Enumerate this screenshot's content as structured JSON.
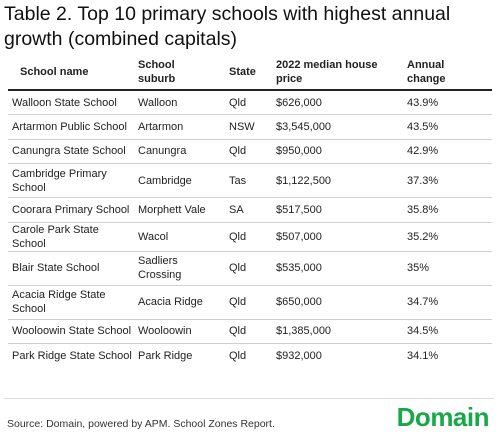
{
  "title": "Table 2. Top 10 primary schools with highest annual growth (combined capitals)",
  "table": {
    "headers": [
      "School name",
      "School suburb",
      "State",
      "2022 median house price",
      "Annual change"
    ],
    "rows": [
      {
        "school": "Walloon State School",
        "suburb": "Walloon",
        "state": "Qld",
        "price": "$626,000",
        "change": "43.9%"
      },
      {
        "school": "Artarmon Public School",
        "suburb": "Artarmon",
        "state": "NSW",
        "price": "$3,545,000",
        "change": "43.5%"
      },
      {
        "school": "Canungra State School",
        "suburb": "Canungra",
        "state": "Qld",
        "price": "$950,000",
        "change": "42.9%"
      },
      {
        "school": "Cambridge Primary School",
        "suburb": "Cambridge",
        "state": "Tas",
        "price": "$1,122,500",
        "change": "37.3%"
      },
      {
        "school": "Coorara Primary School",
        "suburb": "Morphett Vale",
        "state": "SA",
        "price": "$517,500",
        "change": "35.8%"
      },
      {
        "school": "Carole Park State School",
        "suburb": "Wacol",
        "state": "Qld",
        "price": "$507,000",
        "change": "35.2%"
      },
      {
        "school": "Blair State School",
        "suburb": "Sadliers Crossing",
        "state": "Qld",
        "price": "$535,000",
        "change": "35%"
      },
      {
        "school": "Acacia Ridge State School",
        "suburb": "Acacia Ridge",
        "state": "Qld",
        "price": "$650,000",
        "change": "34.7%"
      },
      {
        "school": "Wooloowin State School",
        "suburb": "Wooloowin",
        "state": "Qld",
        "price": "$1,385,000",
        "change": "34.5%"
      },
      {
        "school": "Park Ridge State School",
        "suburb": "Park Ridge",
        "state": "Qld",
        "price": "$932,000",
        "change": "34.1%"
      }
    ]
  },
  "footer": {
    "source": "Source: Domain, powered by APM. School Zones Report.",
    "brand": "Domain",
    "brand_color": "#18a84a"
  }
}
